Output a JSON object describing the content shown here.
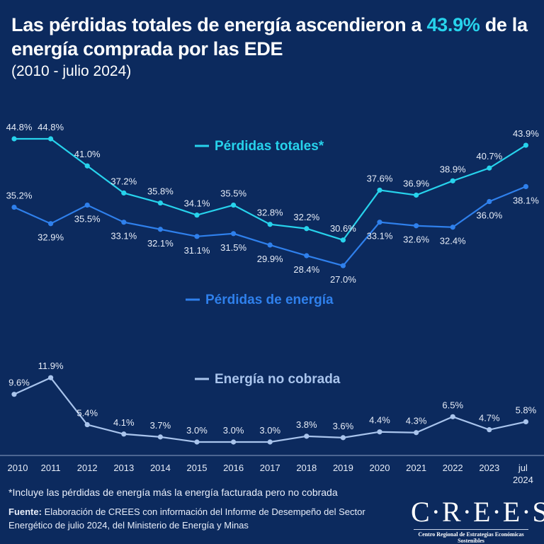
{
  "header": {
    "title_before": "Las pérdidas totales de energía ascendieron a ",
    "title_highlight": "43.9%",
    "title_after": " de la energía comprada por las EDE",
    "subtitle": "(2010 - julio 2024)"
  },
  "chart_data": {
    "type": "line",
    "title": "Las pérdidas totales de energía ascendieron a 43.9% de la energía comprada por las EDE",
    "subtitle": "(2010 - julio 2024)",
    "categories": [
      "2010",
      "2011",
      "2012",
      "2013",
      "2014",
      "2015",
      "2016",
      "2017",
      "2018",
      "2019",
      "2020",
      "2021",
      "2022",
      "2023",
      "jul 2024"
    ],
    "series": [
      {
        "name": "Pérdidas totales*",
        "color": "#27d3ec",
        "values": [
          44.8,
          44.8,
          41.0,
          37.2,
          35.8,
          34.1,
          35.5,
          32.8,
          32.2,
          30.6,
          37.6,
          36.9,
          38.9,
          40.7,
          43.9
        ]
      },
      {
        "name": "Pérdidas de energía",
        "color": "#2f80ec",
        "values": [
          35.2,
          32.9,
          35.5,
          33.1,
          32.1,
          31.1,
          31.5,
          29.9,
          28.4,
          27.0,
          33.1,
          32.6,
          32.4,
          36.0,
          38.1
        ]
      },
      {
        "name": "Energía no cobrada",
        "color": "#a9c4ec",
        "values": [
          9.6,
          11.9,
          5.4,
          4.1,
          3.7,
          3.0,
          3.0,
          3.0,
          3.8,
          3.6,
          4.4,
          4.3,
          6.5,
          4.7,
          5.8
        ]
      }
    ],
    "value_suffix": "%",
    "xlabel": "",
    "ylabel": "",
    "grid": false
  },
  "footer": {
    "note": "*Incluye las pérdidas de energía más la energía facturada pero no cobrada",
    "source_label": "Fuente:",
    "source_text": " Elaboración de CREES con información del Informe de Desempeño del Sector Energético de julio 2024, del Ministerio de Energía y Minas"
  },
  "logo": {
    "name": "C·R·E·E·S",
    "tagline": "Centro Regional de Estrategias Económicas Sostenibles"
  }
}
